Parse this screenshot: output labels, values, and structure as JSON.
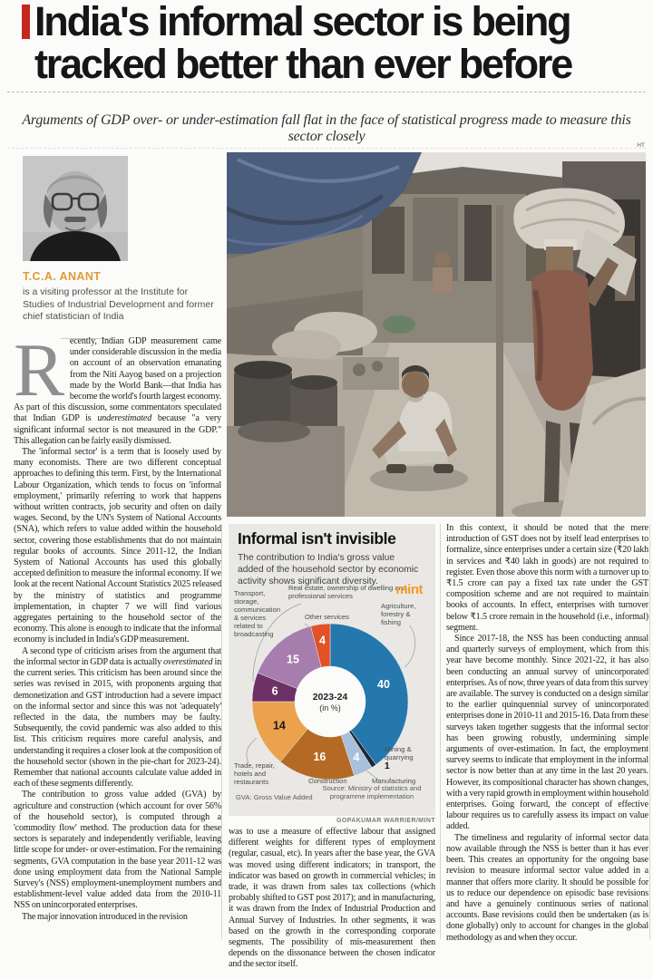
{
  "colors": {
    "headline_accent": "#c4271d",
    "author_name": "#e09a36",
    "mint_brand": "#f59b20",
    "infographic_bg": "#e9e8e5"
  },
  "headline": {
    "line1": "India's informal sector is being",
    "line2": "tracked better than ever before"
  },
  "deck": "Arguments of GDP over- or under-estimation fall flat in the face of statistical progress made to measure this sector closely",
  "author": {
    "name": "T.C.A. ANANT",
    "bio": "is a visiting professor at the Institute for Studies of Industrial Development and former chief statistician of India"
  },
  "photo": {
    "credit": "HT"
  },
  "article": {
    "dropcap": "R",
    "col1": {
      "p1a": "ecently, Indian GDP measurement came under considerable discussion in the media on account of an observation emanating from the Niti Aayog based on a projection made by the World Bank—that India has become the world's fourth largest economy. As part of this discussion, some commentators speculated that Indian GDP is ",
      "p1_italic": "underestimated",
      "p1b": " because \"a very significant informal sector is not measured in the GDP.\" This allegation can be fairly easily dismissed.",
      "p2": "The 'informal sector' is a term that is loosely used by many economists. There are two different conceptual approaches to defining this term. First, by the International Labour Organization, which tends to focus on 'informal employment,' primarily referring to work that happens without written contracts, job security and often on daily wages. Second, by the UN's System of National Accounts (SNA), which refers to value added within the household sector, covering those establishments that do not maintain regular books of accounts. Since 2011-12, the Indian System of National Accounts has used this globally accepted definition to measure the informal economy. If we look at the recent National Account Statistics 2025 released by the ministry of statistics and programme implementation, in chapter 7 we will find various aggregates pertaining to the household sector of the economy. This alone is enough to indicate that the informal economy is included in India's GDP measurement.",
      "p3a": "A second type of criticism arises from the argument that the informal sector in GDP data is actually ",
      "p3_italic": "overestimated",
      "p3b": " in the current series. This criticism has been around since the series was revised in 2015, with proponents arguing that demonetization and GST introduction had a severe impact on the informal sector and since this was not 'adequately' reflected in the data, the numbers may be faulty. Subsequently, the covid pandemic was also added to this list. This criticism requires more careful analysis, and understanding it requires a closer look at the composition of the household sector (shown in the pie-chart for 2023-24). Remember that national accounts calculate value added in each of these segments differently.",
      "p4": "The contribution to gross value added (GVA) by agriculture and construction (which account for over 56% of the household sector), is computed through a 'commodity flow' method. The production data for these sectors is separately and independently verifiable, leaving little scope for under- or over-estimation. For the remaining segments, GVA computation in the base year 2011-12 was done using employment data from the National Sample Survey's (NSS) employment-unemployment numbers and establishment-level value added data from the 2010-11 NSS on unincorporated enterprises.",
      "p5": "The major innovation introduced in the revision"
    },
    "col2": {
      "p1": "was to use a measure of effective labour that assigned different weights for different types of employment (regular, casual, etc). In years after the base year, the GVA was moved using different indicators; in transport, the indicator was based on growth in commercial vehicles; in trade, it was drawn from sales tax collections (which probably shifted to GST post 2017); and in manufacturing, it was drawn from the Index of Industrial Production and Annual Survey of Industries. In other segments, it was based on the growth in the corresponding corporate segments. The possibility of mis-measurement then depends on the dissonance between the chosen indicator and the sector itself."
    },
    "col3": {
      "p1": "In this context, it should be noted that the mere introduction of GST does not by itself lead enterprises to formalize, since enterprises under a certain size (₹20 lakh in services and ₹40 lakh in goods) are not required to register. Even those above this norm with a turnover up to ₹1.5 crore can pay a fixed tax rate under the GST composition scheme and are not required to maintain books of accounts. In effect, enterprises with turnover below ₹1.5 crore remain in the household (i.e., informal) segment.",
      "p2": "Since 2017-18, the NSS has been conducting annual and quarterly surveys of employment, which from this year have become monthly. Since 2021-22, it has also been conducting an annual survey of unincorporated enterprises. As of now, three years of data from this survey are available. The survey is conducted on a design similar to the earlier quinquennial survey of unincorporated enterprises done in 2010-11 and 2015-16. Data from these surveys taken together suggests that the informal sector has been growing robustly, undermining simple arguments of over-estimation. In fact, the employment survey seems to indicate that employment in the informal sector is now better than at any time in the last 20 years. However, its compositional character has shown changes, with a very rapid growth in employment within household enterprises. Going forward, the concept of effective labour requires us to carefully assess its impact on value added.",
      "p3": "The timeliness and regularity of informal sector data now available through the NSS is better than it has ever been. This creates an opportunity for the ongoing base revision to measure informal sector value added in a manner that offers more clarity. It should be possible for us to reduce our dependence on episodic base revisions and have a genuinely continuous series of national accounts. Base revisions could then be undertaken (as is done globally) only to account for changes in the global methodology as and when they occur."
    }
  },
  "infographic": {
    "brand": "mint"
  },
  "chart_data": {
    "type": "pie",
    "title": "Informal isn't invisible",
    "subtitle": "The contribution to India's gross value added of the household sector by economic activity shows significant diversity.",
    "center_label": [
      "2023-24",
      "(in %)"
    ],
    "unit": "%",
    "legend_position": "around-donut",
    "slices": [
      {
        "label": "Agriculture, forestry & fishing",
        "value": 40,
        "color": "#2478ad",
        "value_label_color": "#ffffff"
      },
      {
        "label": "Mining & quarrying",
        "value": 1,
        "color": "#1b2733",
        "value_label_color": null
      },
      {
        "label": "Manufacturing",
        "value": 4,
        "color": "#a9c0dc",
        "value_label_color": "#ffffff"
      },
      {
        "label": "Construction",
        "value": 16,
        "color": "#b46a24",
        "value_label_color": "#ffffff"
      },
      {
        "label": "Trade, repair, hotels and restaurants",
        "value": 14,
        "color": "#eca14c",
        "value_label_color": "#1a1a1a"
      },
      {
        "label": "Real estate, ownership of dwelling and professional services",
        "value": 6,
        "color": "#6e3166",
        "value_label_color": "#ffffff"
      },
      {
        "label": "Transport, storage, communication & services related to broadcasting",
        "value": 15,
        "color": "#a77dad",
        "value_label_color": "#ffffff"
      },
      {
        "label": "Other services",
        "value": 4,
        "color": "#e25226",
        "value_label_color": "#ffffff"
      }
    ],
    "footnote": "GVA: Gross Value Added",
    "source": "Source: Ministry of statistics and programme implementation",
    "credit": "GOPAKUMAR WARRIER/MINT"
  }
}
